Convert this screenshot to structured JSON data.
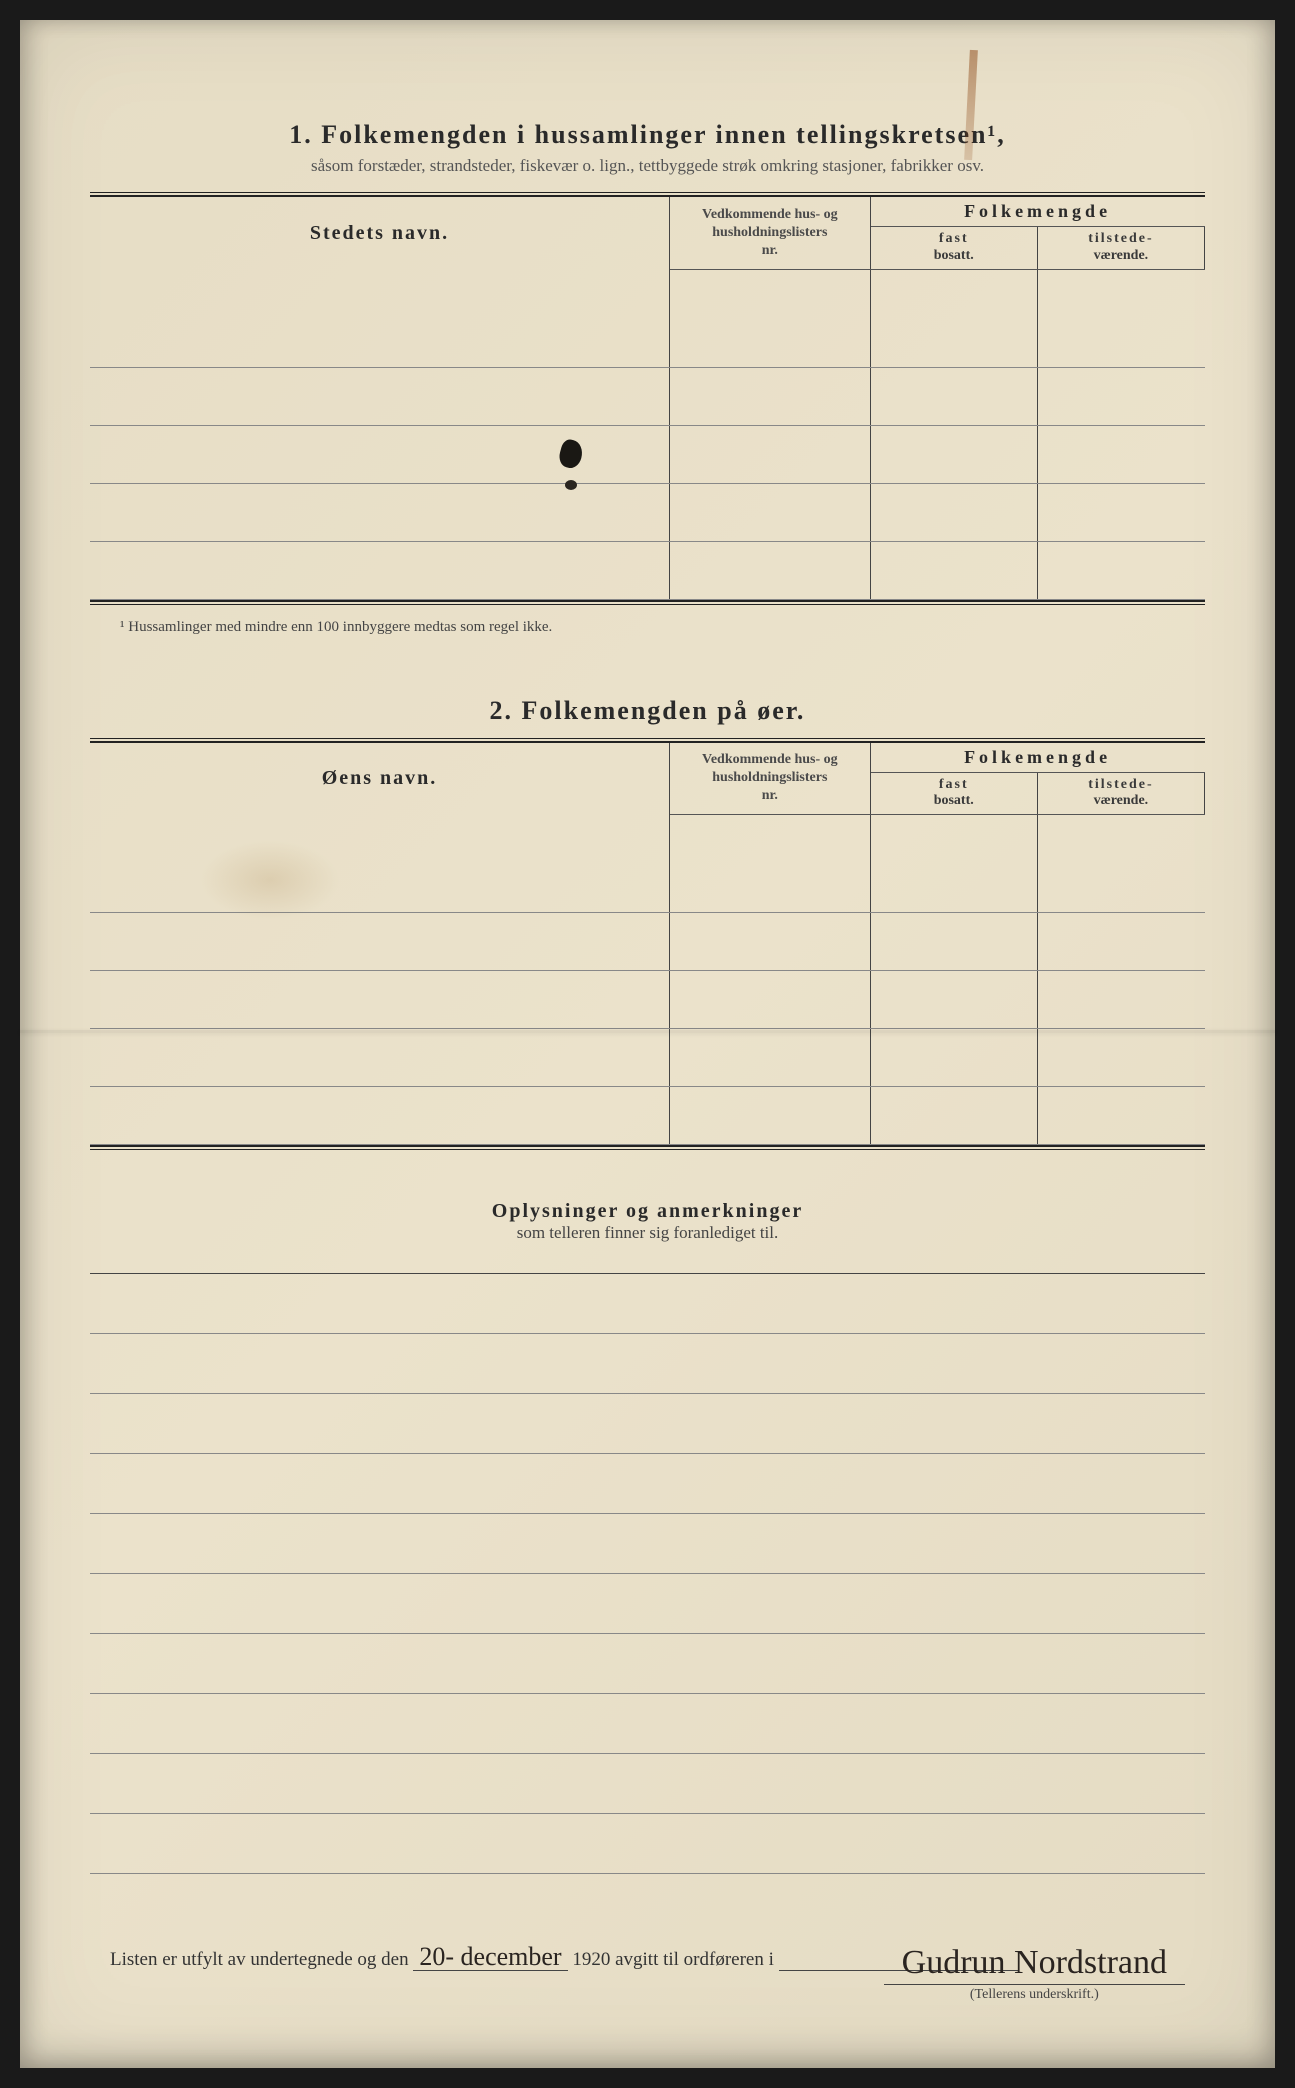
{
  "section1": {
    "number": "1.",
    "title": "Folkemengden i hussamlinger innen tellingskretsen¹,",
    "subtitle": "såsom forstæder, strandsteder, fiskevær o. lign., tettbyggede strøk omkring stasjoner, fabrikker osv.",
    "col_name": "Stedets navn.",
    "col_nr_line1": "Vedkommende hus- og",
    "col_nr_line2": "husholdningslisters",
    "col_nr_line3": "nr.",
    "col_folk": "Folkemengde",
    "col_fast_b": "fast",
    "col_fast": "bosatt.",
    "col_til_b": "tilstede-",
    "col_til": "værende.",
    "footnote": "¹ Hussamlinger med mindre enn 100 innbyggere medtas som regel ikke."
  },
  "section2": {
    "number": "2.",
    "title": "Folkemengden på øer.",
    "col_name": "Øens navn."
  },
  "section3": {
    "title": "Oplysninger og anmerkninger",
    "subtitle": "som telleren finner sig foranlediget til."
  },
  "signoff": {
    "prefix": "Listen er utfylt av undertegnede og den",
    "date_hand": "20- december",
    "year": "1920",
    "mid": "avgitt til ordføreren i",
    "signature": "Gudrun Nordstrand",
    "signature_label": "(Tellerens underskrift.)"
  },
  "layout": {
    "section1_rows": 5,
    "section2_rows": 5,
    "remark_rows": 10
  }
}
